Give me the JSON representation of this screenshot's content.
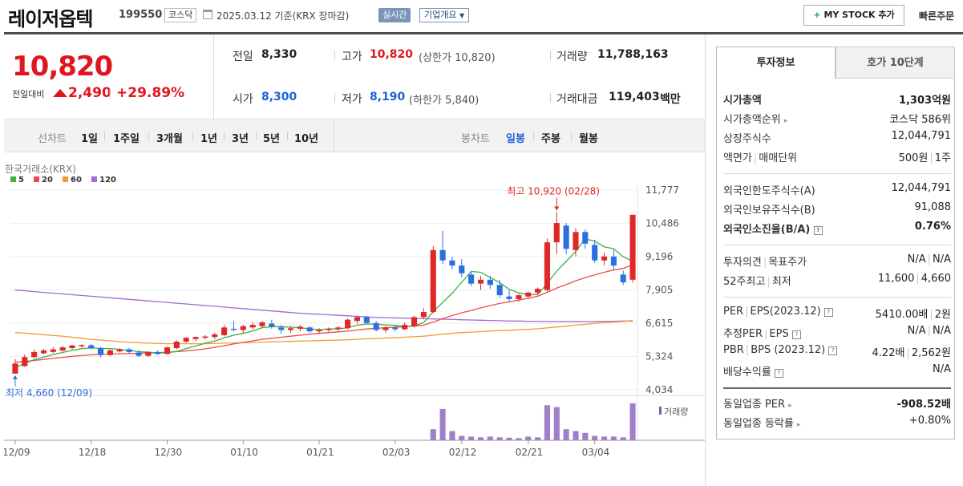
{
  "header": {
    "name": "레이저옵텍",
    "code": "199550",
    "market": "코스닥",
    "base_date": "2025.03.12  기준(KRX 장마감)",
    "realtime": "실시간",
    "company_overview": "기업개요",
    "mystock": "MY STOCK 추가",
    "quick_order": "빠른주문"
  },
  "quote": {
    "current": "10,820",
    "change_label": "전일대비",
    "change": "2,490",
    "change_rate": "+29.89%",
    "prev_label": "전일",
    "prev": "8,330",
    "high_label": "고가",
    "high": "10,820",
    "upper_limit": "(상한가 10,820)",
    "volume_label": "거래량",
    "volume": "11,788,163",
    "open_label": "시가",
    "open": "8,300",
    "low_label": "저가",
    "low": "8,190",
    "lower_limit": "(하한가 5,840)",
    "amount_label": "거래대금",
    "amount": "119,403",
    "amount_unit": "백만"
  },
  "period_bar": {
    "line_label": "선차트",
    "line_periods": [
      "1일",
      "1주일",
      "3개월",
      "1년",
      "3년",
      "5년",
      "10년"
    ],
    "candle_label": "봉차트",
    "candle_periods": [
      "일봉",
      "주봉",
      "월봉"
    ],
    "candle_selected": "일봉"
  },
  "chart_data": {
    "type": "candlestick",
    "source": "한국거래소(KRX)",
    "legend": [
      {
        "name": "5",
        "color": "#3cb043"
      },
      {
        "name": "20",
        "color": "#f04b4b"
      },
      {
        "name": "60",
        "color": "#f39a35"
      },
      {
        "name": "120",
        "color": "#a06ad4"
      }
    ],
    "y_ticks": [
      "11,777",
      "10,486",
      "9,196",
      "7,905",
      "6,615",
      "5,324",
      "4,034"
    ],
    "ylim": [
      4034,
      11777
    ],
    "x_ticks": [
      "12/09",
      "12/18",
      "12/30",
      "01/10",
      "01/21",
      "02/03",
      "02/12",
      "02/21",
      "03/04"
    ],
    "max_annotation": "최고 10,920 (02/28)",
    "min_annotation": "최저 4,660 (12/09)",
    "volume_label": "거래량",
    "candles": [
      [
        4660,
        5230,
        4660,
        5050
      ],
      [
        4950,
        5400,
        4920,
        5300
      ],
      [
        5300,
        5600,
        5250,
        5500
      ],
      [
        5450,
        5620,
        5400,
        5560
      ],
      [
        5500,
        5680,
        5450,
        5600
      ],
      [
        5550,
        5720,
        5520,
        5680
      ],
      [
        5650,
        5780,
        5600,
        5750
      ],
      [
        5720,
        5800,
        5680,
        5760
      ],
      [
        5760,
        5820,
        5600,
        5640
      ],
      [
        5650,
        5700,
        5300,
        5380
      ],
      [
        5380,
        5600,
        5350,
        5560
      ],
      [
        5520,
        5640,
        5480,
        5600
      ],
      [
        5600,
        5650,
        5450,
        5500
      ],
      [
        5480,
        5560,
        5300,
        5350
      ],
      [
        5350,
        5520,
        5320,
        5500
      ],
      [
        5500,
        5560,
        5380,
        5420
      ],
      [
        5420,
        5700,
        5400,
        5680
      ],
      [
        5650,
        5950,
        5600,
        5900
      ],
      [
        5900,
        6080,
        5850,
        6050
      ],
      [
        6000,
        6100,
        5920,
        6080
      ],
      [
        6050,
        6150,
        5980,
        6100
      ],
      [
        6080,
        6250,
        6000,
        6180
      ],
      [
        6150,
        6550,
        6100,
        6450
      ],
      [
        6400,
        6700,
        6300,
        6380
      ],
      [
        6350,
        6550,
        6200,
        6500
      ],
      [
        6450,
        6650,
        6380,
        6550
      ],
      [
        6500,
        6700,
        6420,
        6650
      ],
      [
        6600,
        6750,
        6400,
        6480
      ],
      [
        6450,
        6550,
        6200,
        6350
      ],
      [
        6350,
        6500,
        6250,
        6420
      ],
      [
        6400,
        6550,
        6300,
        6480
      ],
      [
        6450,
        6500,
        6250,
        6300
      ],
      [
        6300,
        6420,
        6200,
        6350
      ],
      [
        6350,
        6450,
        6280,
        6400
      ],
      [
        6400,
        6500,
        6320,
        6450
      ],
      [
        6420,
        6800,
        6380,
        6750
      ],
      [
        6700,
        6900,
        6600,
        6850
      ],
      [
        6850,
        6900,
        6580,
        6620
      ],
      [
        6620,
        6700,
        6300,
        6350
      ],
      [
        6350,
        6500,
        6250,
        6450
      ],
      [
        6450,
        6550,
        6300,
        6380
      ],
      [
        6380,
        6650,
        6350,
        6550
      ],
      [
        6500,
        6900,
        6450,
        6850
      ],
      [
        6850,
        7200,
        6800,
        7050
      ],
      [
        7050,
        9600,
        7000,
        9450
      ],
      [
        9450,
        10200,
        8900,
        9050
      ],
      [
        9050,
        9200,
        8700,
        8850
      ],
      [
        8850,
        9100,
        8400,
        8550
      ],
      [
        8500,
        8600,
        8050,
        8150
      ],
      [
        8150,
        8450,
        7900,
        8300
      ],
      [
        8300,
        8450,
        7950,
        8100
      ],
      [
        8100,
        8300,
        7600,
        7700
      ],
      [
        7650,
        7900,
        7450,
        7550
      ],
      [
        7550,
        7750,
        7450,
        7700
      ],
      [
        7650,
        7850,
        7550,
        7800
      ],
      [
        7800,
        8000,
        7700,
        7950
      ],
      [
        7900,
        9900,
        7850,
        9750
      ],
      [
        9750,
        10920,
        9300,
        10500
      ],
      [
        10400,
        10500,
        9300,
        9500
      ],
      [
        9450,
        10300,
        9200,
        10150
      ],
      [
        10150,
        10250,
        9500,
        9700
      ],
      [
        9650,
        9850,
        8950,
        9050
      ],
      [
        9050,
        9350,
        8850,
        9200
      ],
      [
        9200,
        9450,
        8700,
        8850
      ],
      [
        8500,
        8650,
        8100,
        8200
      ],
      [
        8300,
        10820,
        8190,
        10820
      ]
    ],
    "volumes": [
      1,
      1,
      1,
      1,
      1,
      1,
      1,
      1,
      1,
      1,
      1,
      1,
      1,
      1,
      1,
      1,
      1,
      1,
      1,
      1,
      1,
      1,
      1,
      1,
      1,
      1,
      1,
      1,
      1,
      1,
      1,
      1,
      1,
      1,
      1,
      1,
      1,
      1,
      1,
      1,
      1,
      1,
      1,
      1,
      30,
      85,
      25,
      12,
      10,
      8,
      10,
      8,
      7,
      6,
      10,
      8,
      95,
      90,
      30,
      25,
      20,
      12,
      10,
      10,
      8,
      100
    ],
    "ma5": [
      4900,
      5050,
      5200,
      5300,
      5400,
      5480,
      5560,
      5630,
      5660,
      5640,
      5630,
      5600,
      5570,
      5510,
      5490,
      5460,
      5470,
      5520,
      5630,
      5730,
      5840,
      5920,
      6050,
      6150,
      6220,
      6310,
      6440,
      6480,
      6480,
      6460,
      6440,
      6390,
      6360,
      6390,
      6390,
      6440,
      6540,
      6580,
      6580,
      6550,
      6530,
      6480,
      6510,
      6640,
      7070,
      7420,
      7780,
      8200,
      8620,
      8590,
      8390,
      8190,
      7930,
      7790,
      7730,
      7720,
      8150,
      8640,
      9010,
      9400,
      9880,
      9800,
      9580,
      9500,
      9190,
      9020
    ],
    "ma20": [
      5100,
      5130,
      5170,
      5210,
      5250,
      5290,
      5330,
      5360,
      5390,
      5410,
      5420,
      5430,
      5440,
      5450,
      5460,
      5470,
      5490,
      5510,
      5540,
      5580,
      5620,
      5680,
      5740,
      5810,
      5870,
      5930,
      5990,
      6030,
      6070,
      6110,
      6150,
      6190,
      6220,
      6250,
      6280,
      6310,
      6350,
      6390,
      6420,
      6440,
      6460,
      6480,
      6500,
      6540,
      6660,
      6790,
      6910,
      7020,
      7110,
      7210,
      7300,
      7380,
      7440,
      7510,
      7580,
      7660,
      7810,
      7980,
      8110,
      8260,
      8380,
      8490,
      8590,
      8680,
      8740,
      8880
    ],
    "ma60": [
      6250,
      6230,
      6200,
      6170,
      6140,
      6110,
      6070,
      6030,
      5990,
      5960,
      5930,
      5900,
      5880,
      5860,
      5840,
      5830,
      5820,
      5820,
      5820,
      5820,
      5820,
      5830,
      5840,
      5850,
      5860,
      5870,
      5880,
      5890,
      5900,
      5910,
      5920,
      5930,
      5940,
      5950,
      5960,
      5970,
      5990,
      6010,
      6020,
      6040,
      6050,
      6070,
      6090,
      6110,
      6150,
      6190,
      6220,
      6250,
      6270,
      6290,
      6310,
      6330,
      6340,
      6360,
      6380,
      6400,
      6430,
      6470,
      6500,
      6540,
      6570,
      6610,
      6640,
      6660,
      6680,
      6720
    ],
    "ma120": [
      7900,
      7870,
      7840,
      7810,
      7780,
      7750,
      7720,
      7690,
      7660,
      7630,
      7600,
      7570,
      7540,
      7510,
      7480,
      7450,
      7420,
      7390,
      7360,
      7330,
      7300,
      7270,
      7240,
      7210,
      7180,
      7150,
      7120,
      7090,
      7060,
      7030,
      7000,
      6980,
      6960,
      6940,
      6920,
      6900,
      6880,
      6860,
      6840,
      6830,
      6820,
      6810,
      6800,
      6790,
      6780,
      6770,
      6760,
      6750,
      6740,
      6730,
      6720,
      6710,
      6700,
      6700,
      6690,
      6690,
      6680,
      6680,
      6680,
      6680,
      6680,
      6680,
      6690,
      6690,
      6700,
      6700
    ]
  },
  "info_panel": {
    "tab_invest": "투자정보",
    "tab_orderbook": "호가 10단계",
    "rows": {
      "market_cap_l": "시가총액",
      "market_cap_v": "1,303억원",
      "cap_rank_l": "시가총액순위",
      "cap_rank_v": "코스닥 586위",
      "shares_l": "상장주식수",
      "shares_v": "12,044,791",
      "par_l": "액면가",
      "unit_l": "매매단위",
      "par_v": "500원",
      "unit_v": "1주",
      "foreign_limit_l": "외국인한도주식수(A)",
      "foreign_limit_v": "12,044,791",
      "foreign_hold_l": "외국인보유주식수(B)",
      "foreign_hold_v": "91,088",
      "foreign_rate_l": "외국인소진율(B/A)",
      "foreign_rate_v": "0.76%",
      "opinion_l": "투자의견",
      "target_l": "목표주가",
      "opinion_v": "N/A",
      "target_v": "N/A",
      "w52_high_l": "52주최고",
      "w52_low_l": "최저",
      "w52_high_v": "11,600",
      "w52_low_v": "4,660",
      "per_l": "PER",
      "eps_l": "EPS(2023.12)",
      "per_v": "5410.00배",
      "eps_v": "2원",
      "est_per_l": "추정PER",
      "est_eps_l": "EPS",
      "est_per_v": "N/A",
      "est_eps_v": "N/A",
      "pbr_l": "PBR",
      "bps_l": "BPS (2023.12)",
      "pbr_v": "4.22배",
      "bps_v": "2,562원",
      "dividend_l": "배당수익률",
      "dividend_v": "N/A",
      "sector_per_l": "동일업종 PER",
      "sector_per_v": "-908.52배",
      "sector_rate_l": "동일업종 등락률",
      "sector_rate_v": "+0.80%"
    }
  }
}
